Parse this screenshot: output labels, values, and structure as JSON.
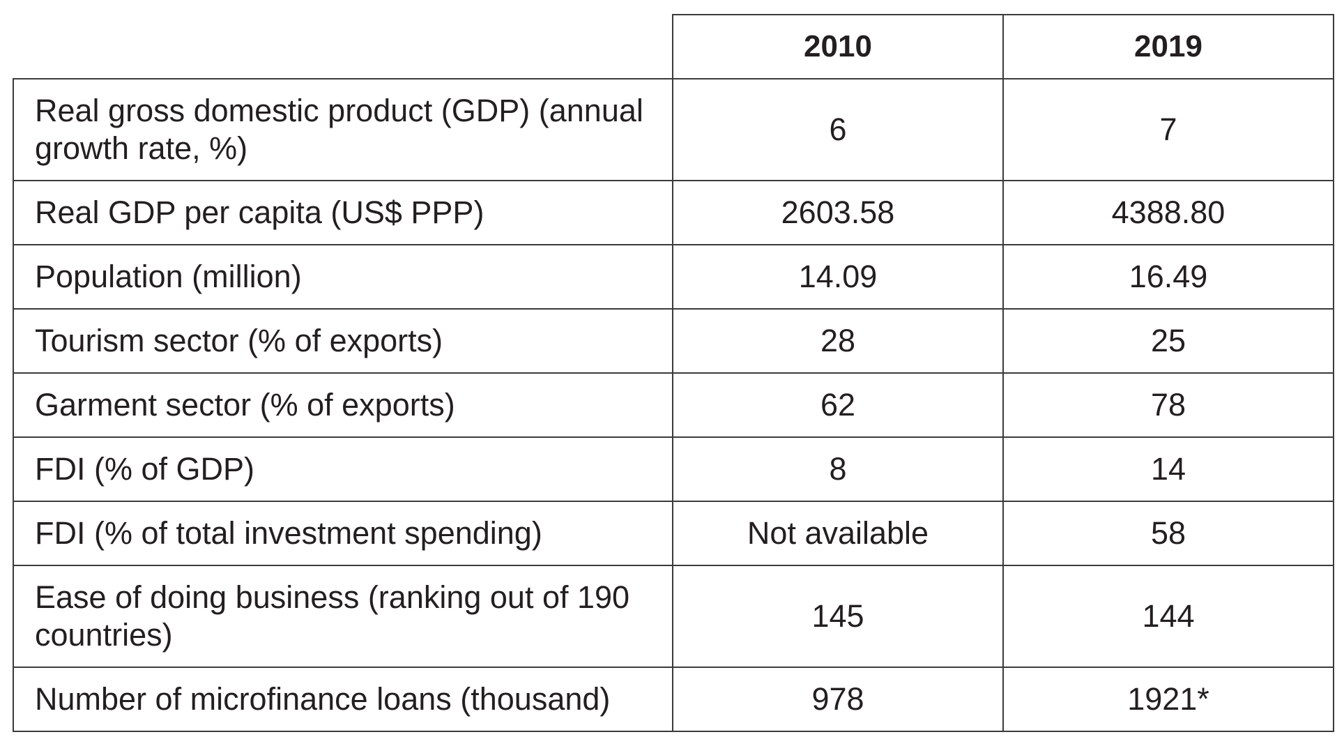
{
  "table": {
    "columns": [
      "",
      "2010",
      "2019"
    ],
    "rows": [
      {
        "label": "Real gross domestic product (GDP) (annual growth rate, %)",
        "y2010": "6",
        "y2019": "7",
        "lines": 2
      },
      {
        "label": "Real GDP per capita (US$ PPP)",
        "y2010": "2603.58",
        "y2019": "4388.80",
        "lines": 1
      },
      {
        "label": "Population (million)",
        "y2010": "14.09",
        "y2019": "16.49",
        "lines": 1
      },
      {
        "label": "Tourism sector (% of exports)",
        "y2010": "28",
        "y2019": "25",
        "lines": 1
      },
      {
        "label": "Garment sector (% of exports)",
        "y2010": "62",
        "y2019": "78",
        "lines": 1
      },
      {
        "label": "FDI (% of GDP)",
        "y2010": "8",
        "y2019": "14",
        "lines": 1
      },
      {
        "label": "FDI (% of total investment spending)",
        "y2010": "Not available",
        "y2019": "58",
        "lines": 1
      },
      {
        "label": "Ease of doing business (ranking out of 190 countries)",
        "y2010": "145",
        "y2019": "144",
        "lines": 2
      },
      {
        "label": "Number of microfinance loans (thousand)",
        "y2010": "978",
        "y2019": "1921*",
        "lines": 1
      }
    ]
  }
}
